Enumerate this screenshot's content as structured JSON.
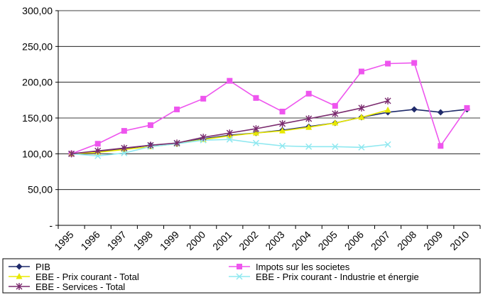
{
  "chart_data": {
    "type": "line",
    "title": "",
    "xlabel": "",
    "ylabel": "",
    "ylim": [
      0,
      300
    ],
    "yticks": [
      0,
      50,
      100,
      150,
      200,
      250,
      300
    ],
    "ytick_labels": [
      "-",
      "50,00",
      "100,00",
      "150,00",
      "200,00",
      "250,00",
      "300,00"
    ],
    "x": [
      "1995",
      "1996",
      "1997",
      "1998",
      "1999",
      "2000",
      "2001",
      "2002",
      "2003",
      "2004",
      "2005",
      "2006",
      "2007",
      "2008",
      "2009",
      "2010"
    ],
    "grid": "horizontal",
    "legend_position": "bottom",
    "series": [
      {
        "name": "PIB",
        "color": "#1f2a6b",
        "marker": "diamond",
        "values": [
          100,
          103,
          107,
          112,
          114,
          121,
          126,
          129,
          133,
          138,
          143,
          151,
          158,
          162,
          158,
          162
        ]
      },
      {
        "name": "Impots sur les societes",
        "color": "#ee55ee",
        "marker": "square",
        "values": [
          100,
          114,
          132,
          140,
          162,
          177,
          202,
          178,
          159,
          184,
          167,
          215,
          226,
          227,
          111,
          164
        ]
      },
      {
        "name": "EBE - Prix courant - Total",
        "color": "#e8e800",
        "marker": "triangle",
        "values": [
          100,
          102,
          106,
          110,
          114,
          120,
          125,
          129,
          132,
          137,
          143,
          151,
          161,
          null,
          null,
          null
        ]
      },
      {
        "name": "EBE - Prix courant - Industrie et énergie",
        "color": "#8fe8f0",
        "marker": "x",
        "values": [
          100,
          97,
          101,
          110,
          114,
          119,
          120,
          115,
          111,
          110,
          110,
          109,
          113,
          null,
          null,
          null
        ]
      },
      {
        "name": "EBE - Services - Total",
        "color": "#7a2a6e",
        "marker": "star",
        "values": [
          100,
          104,
          108,
          112,
          115,
          123,
          129,
          135,
          142,
          149,
          156,
          164,
          174,
          null,
          null,
          null
        ]
      }
    ]
  }
}
